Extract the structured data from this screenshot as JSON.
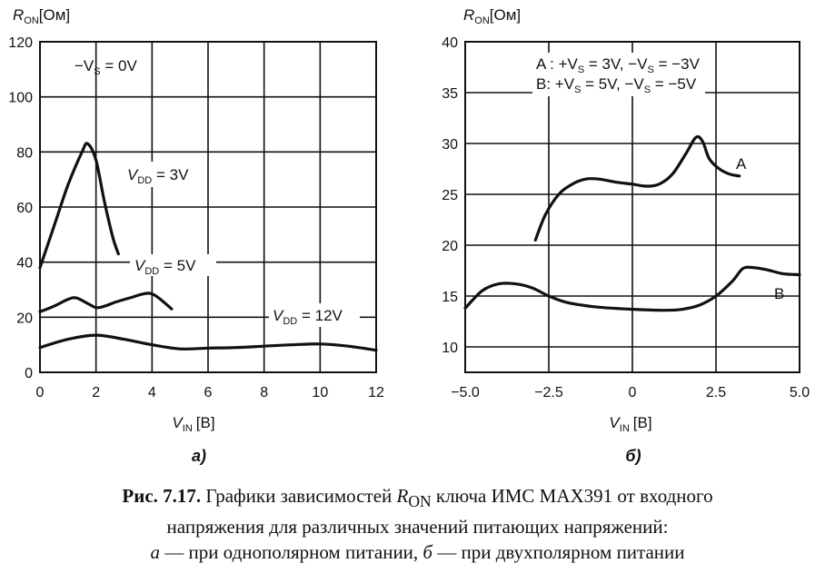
{
  "chart_data": [
    {
      "type": "line",
      "panel_label": "a)",
      "ylabel_main": "R",
      "ylabel_sub": "ON",
      "ylabel_unit": "[Ом]",
      "xlabel_main": "V",
      "xlabel_sub": "IN",
      "xlabel_unit": "[В]",
      "xlim": [
        0,
        12
      ],
      "ylim": [
        0,
        120
      ],
      "xticks": [
        0,
        2,
        4,
        6,
        8,
        10,
        12
      ],
      "xtick_labels": [
        "0",
        "2",
        "4",
        "6",
        "8",
        "10",
        "12"
      ],
      "yticks": [
        0,
        20,
        40,
        60,
        80,
        100,
        120
      ],
      "ytick_labels": [
        "0",
        "20",
        "40",
        "60",
        "80",
        "100",
        "120"
      ],
      "grid": true,
      "annotation": {
        "pre": "−V",
        "sub": "S",
        "post": " = 0V"
      },
      "series": [
        {
          "label_main": "V",
          "label_sub": "DD",
          "label_post": " = 3V",
          "x": [
            0,
            0.5,
            1.0,
            1.5,
            1.7,
            2.0,
            2.3,
            2.6,
            2.8
          ],
          "y": [
            38,
            53,
            68,
            80,
            83,
            77,
            62,
            49,
            43
          ]
        },
        {
          "label_main": "V",
          "label_sub": "DD",
          "label_post": " = 5V",
          "x": [
            0,
            0.5,
            1.0,
            1.3,
            1.7,
            2.0,
            2.3,
            2.7,
            3.2,
            3.7,
            4.0,
            4.3,
            4.7
          ],
          "y": [
            22,
            24,
            26.5,
            27,
            25,
            23.5,
            24,
            25.5,
            27,
            28.5,
            28.5,
            26.5,
            23
          ]
        },
        {
          "label_main": "V",
          "label_sub": "DD",
          "label_post": " = 12V",
          "x": [
            0,
            1,
            2,
            3,
            4,
            5,
            6,
            7,
            8,
            9,
            10,
            11,
            12
          ],
          "y": [
            9,
            12,
            13.5,
            12,
            10,
            8.5,
            8.8,
            9,
            9.5,
            10,
            10.3,
            9.5,
            8
          ]
        }
      ]
    },
    {
      "type": "line",
      "panel_label": "б)",
      "ylabel_main": "R",
      "ylabel_sub": "ON",
      "ylabel_unit": "[Ом]",
      "xlabel_main": "V",
      "xlabel_sub": "IN",
      "xlabel_unit": "[В]",
      "xlim": [
        -5,
        5
      ],
      "ylim": [
        7.5,
        40
      ],
      "xticks": [
        -5,
        -2.5,
        0,
        2.5,
        5
      ],
      "xtick_labels": [
        "−5.0",
        "−2.5",
        "0",
        "2.5",
        "5.0"
      ],
      "yticks": [
        10,
        15,
        20,
        25,
        30,
        35,
        40
      ],
      "ytick_labels": [
        "10",
        "15",
        "20",
        "25",
        "30",
        "35",
        "40"
      ],
      "grid": true,
      "legend_lines": [
        {
          "t1": "A : +V",
          "s1": "S",
          "t2": " = 3V, −V",
          "s2": "S",
          "t3": " = −3V"
        },
        {
          "t1": "B: +V",
          "s1": "S",
          "t2": " = 5V, −V",
          "s2": "S",
          "t3": " = −5V"
        }
      ],
      "series": [
        {
          "label": "A",
          "x": [
            -2.9,
            -2.6,
            -2.2,
            -1.8,
            -1.4,
            -1.0,
            -0.5,
            0,
            0.4,
            0.8,
            1.2,
            1.6,
            1.9,
            2.1,
            2.3,
            2.6,
            2.9,
            3.2
          ],
          "y": [
            20.5,
            23,
            25,
            26,
            26.5,
            26.5,
            26.2,
            26,
            25.8,
            26,
            27,
            29,
            30.6,
            30.2,
            28.5,
            27.5,
            27,
            26.8
          ]
        },
        {
          "label": "B",
          "x": [
            -5,
            -4.5,
            -4,
            -3.5,
            -3,
            -2.5,
            -2,
            -1.5,
            -1,
            0,
            1,
            1.5,
            2,
            2.5,
            3,
            3.3,
            3.6,
            4,
            4.5,
            5
          ],
          "y": [
            13.8,
            15.5,
            16.2,
            16.2,
            15.8,
            15,
            14.4,
            14.1,
            13.9,
            13.7,
            13.6,
            13.7,
            14.1,
            15,
            16.5,
            17.7,
            17.8,
            17.6,
            17.2,
            17.1
          ]
        }
      ]
    }
  ],
  "caption": {
    "prefix": "Рис. 7.17.",
    "line1_a": " Графики зависимостей ",
    "line1_r": "R",
    "line1_rsub": "ON",
    "line1_b": " ключа ИМС MAX391 от входного",
    "line2": "напряжения для различных значений питающих напряжений:",
    "line3_a": "а",
    "line3_b": " — при однополярном питании, ",
    "line3_c": "б",
    "line3_d": " — при двухполярном питании"
  }
}
